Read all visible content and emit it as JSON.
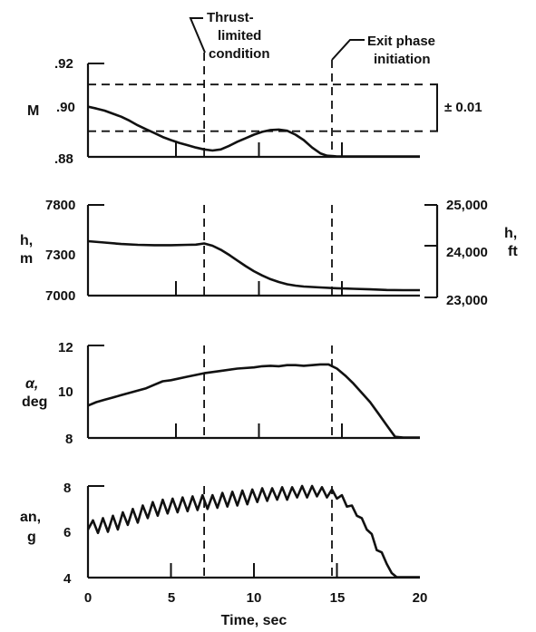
{
  "chart_data": {
    "type": "line",
    "xlabel": "Time, sec",
    "xlim": [
      0,
      20
    ],
    "x_ticks": [
      0,
      5,
      10,
      15,
      20
    ],
    "annotations": [
      {
        "lines": [
          "Thrust-",
          "limited",
          "condition"
        ],
        "x": 7
      },
      {
        "lines": [
          "Exit phase",
          "initiation"
        ],
        "x": 14.7
      }
    ],
    "panels": [
      {
        "id": "mach",
        "ylabel": [
          "M"
        ],
        "ylim": [
          0.88,
          0.92
        ],
        "y_ticks": [
          "0.88",
          "0.90",
          "0.92"
        ],
        "y_tick_labels": [
          ".88",
          ".90",
          ".92"
        ],
        "reference_lines": [
          0.911,
          0.891
        ],
        "band_label": "± 0.01",
        "markers_at": [
          7,
          14.7
        ],
        "series": [
          {
            "x": [
              0,
              0.5,
              1,
              1.5,
              2,
              2.5,
              3,
              3.5,
              4,
              4.5,
              5,
              5.5,
              6,
              6.5,
              7,
              7.5,
              8,
              8.5,
              9,
              9.5,
              10,
              10.5,
              11,
              11.5,
              12,
              12.5,
              13,
              13.5,
              14,
              14.4,
              14.8,
              15,
              16,
              17,
              18,
              19,
              20
            ],
            "y": [
              0.9015,
              0.9007,
              0.8998,
              0.8985,
              0.8972,
              0.8955,
              0.8935,
              0.8918,
              0.8902,
              0.8885,
              0.8872,
              0.886,
              0.885,
              0.884,
              0.8832,
              0.8827,
              0.8832,
              0.8847,
              0.8865,
              0.888,
              0.8895,
              0.8907,
              0.8915,
              0.8917,
              0.8912,
              0.8895,
              0.8872,
              0.884,
              0.8815,
              0.8805,
              0.8803,
              0.8802,
              0.8802,
              0.8802,
              0.8802,
              0.8802,
              0.8802
            ]
          }
        ]
      },
      {
        "id": "altitude",
        "ylabel": [
          "h,",
          "m"
        ],
        "ylim": [
          7000,
          7800
        ],
        "y_ticks": [
          "7000",
          "7300",
          "7800"
        ],
        "right_ylabel": [
          "h,",
          "ft"
        ],
        "right_ticks": [
          "23,000",
          "24,000",
          "25,000"
        ],
        "markers_at": [
          5.3,
          10.3,
          15.3
        ],
        "series": [
          {
            "x": [
              0,
              1,
              2,
              3,
              4,
              5,
              6,
              6.5,
              7,
              7.5,
              8,
              8.5,
              9,
              9.5,
              10,
              10.5,
              11,
              11.5,
              12,
              12.5,
              13,
              14,
              15,
              16,
              17,
              18,
              19,
              20
            ],
            "y": [
              7480,
              7468,
              7455,
              7448,
              7445,
              7445,
              7448,
              7450,
              7460,
              7440,
              7405,
              7360,
              7310,
              7260,
              7215,
              7178,
              7145,
              7120,
              7100,
              7088,
              7080,
              7072,
              7065,
              7060,
              7055,
              7050,
              7048,
              7048
            ]
          }
        ]
      },
      {
        "id": "alpha",
        "ylabel": [
          "α,",
          "deg"
        ],
        "ylim": [
          8,
          12
        ],
        "y_ticks": [
          "8",
          "10",
          "12"
        ],
        "markers_at": [
          5.3,
          10.3,
          15.3
        ],
        "series": [
          {
            "x": [
              0,
              0.5,
              1,
              1.5,
              2,
              2.5,
              3,
              3.5,
              4,
              4.5,
              5,
              6,
              7,
              8,
              9,
              10,
              10.5,
              11,
              11.5,
              12,
              12.5,
              13,
              13.5,
              14,
              14.5,
              15,
              15.5,
              16,
              16.5,
              17,
              17.5,
              18,
              18.5,
              19,
              20
            ],
            "y": [
              9.4,
              9.55,
              9.65,
              9.75,
              9.85,
              9.95,
              10.05,
              10.15,
              10.3,
              10.45,
              10.5,
              10.65,
              10.8,
              10.9,
              11.0,
              11.05,
              11.1,
              11.12,
              11.1,
              11.15,
              11.15,
              11.12,
              11.15,
              11.18,
              11.18,
              11.0,
              10.7,
              10.35,
              9.95,
              9.55,
              9.05,
              8.55,
              8.05,
              8.02,
              8.02
            ]
          }
        ]
      },
      {
        "id": "normal-accel",
        "ylabel": [
          "an,",
          "g"
        ],
        "ylim": [
          4,
          8
        ],
        "y_ticks": [
          "4",
          "6",
          "8"
        ],
        "markers_at": [
          5.3,
          10.3,
          15.3
        ],
        "series": [
          {
            "x": [
              0,
              0.3,
              0.6,
              0.9,
              1.2,
              1.5,
              1.8,
              2.1,
              2.4,
              2.7,
              3.0,
              3.3,
              3.6,
              3.9,
              4.2,
              4.5,
              4.8,
              5.1,
              5.4,
              5.7,
              6.0,
              6.3,
              6.6,
              6.9,
              7.2,
              7.5,
              7.8,
              8.1,
              8.4,
              8.7,
              9.0,
              9.3,
              9.6,
              9.9,
              10.2,
              10.5,
              10.8,
              11.1,
              11.4,
              11.7,
              12.0,
              12.3,
              12.6,
              12.9,
              13.2,
              13.5,
              13.8,
              14.1,
              14.4,
              14.7,
              15.0,
              15.3,
              15.6,
              15.9,
              16.2,
              16.5,
              16.8,
              17.1,
              17.4,
              17.7,
              18.0,
              18.3,
              18.6,
              20
            ],
            "y": [
              6.1,
              6.5,
              5.95,
              6.6,
              6.0,
              6.7,
              6.1,
              6.85,
              6.3,
              7.0,
              6.4,
              7.15,
              6.6,
              7.3,
              6.7,
              7.4,
              6.8,
              7.45,
              6.85,
              7.5,
              6.9,
              7.55,
              6.95,
              7.6,
              7.0,
              7.6,
              7.05,
              7.7,
              7.1,
              7.75,
              7.15,
              7.8,
              7.2,
              7.85,
              7.3,
              7.9,
              7.35,
              7.9,
              7.4,
              7.95,
              7.4,
              7.95,
              7.5,
              8.0,
              7.5,
              8.0,
              7.55,
              7.95,
              7.5,
              7.85,
              7.45,
              7.6,
              7.1,
              7.15,
              6.7,
              6.6,
              6.1,
              5.9,
              5.2,
              5.1,
              4.6,
              4.2,
              4.02,
              4.02
            ]
          }
        ]
      }
    ]
  }
}
